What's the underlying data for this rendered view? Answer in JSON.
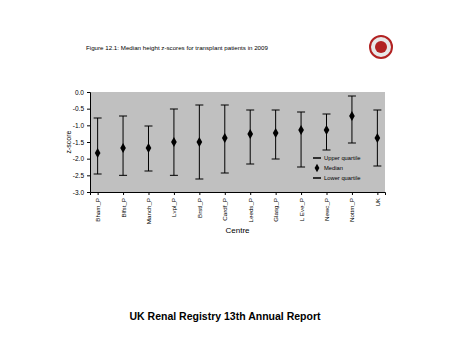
{
  "chart_data": {
    "type": "error_bar",
    "title": "Figure 12.1: Median height z-scores for transplant patients in 2009",
    "annotations": [
      "UK Renal Registry 13th Annual Report"
    ],
    "x_label": "Centre",
    "y_label": "z-score",
    "categories": [
      "Bham_P",
      "Blfst_P",
      "Manch_P",
      "Lvpl_P",
      "Brstl_P",
      "Cardf_P",
      "Leeds_P",
      "Glasg_P",
      "L Eve_P",
      "Newc_P",
      "Nottm_P",
      "UK"
    ],
    "series": [
      {
        "name": "Upper quartile",
        "color": "#000000",
        "marker": "dash",
        "values": [
          -0.78,
          -0.72,
          -1.02,
          -0.51,
          -0.39,
          -0.39,
          -0.54,
          -0.54,
          -0.6,
          -0.66,
          -0.12,
          -0.54
        ]
      },
      {
        "name": "Median",
        "color": "#000000",
        "marker": "diamond",
        "values": [
          -1.83,
          -1.68,
          -1.68,
          -1.5,
          -1.5,
          -1.38,
          -1.26,
          -1.23,
          -1.14,
          -1.14,
          -0.72,
          -1.38
        ]
      },
      {
        "name": "Lower quartile",
        "color": "#000000",
        "marker": "dash",
        "values": [
          -2.46,
          -2.5,
          -2.37,
          -2.5,
          -2.61,
          -2.43,
          -2.16,
          -2.01,
          -2.25,
          -1.74,
          -1.53,
          -2.22
        ]
      }
    ],
    "ylim": [
      -3,
      0
    ],
    "yticks": [
      {
        "value": 0,
        "label": "0.0"
      },
      -0.5,
      {
        "value": -1,
        "label": "-1.0"
      },
      -1.5,
      {
        "value": -2,
        "label": "-2.0"
      },
      -2.5,
      {
        "value": -3,
        "label": "-3.0"
      }
    ],
    "grid": false,
    "legend": "lower right"
  }
}
